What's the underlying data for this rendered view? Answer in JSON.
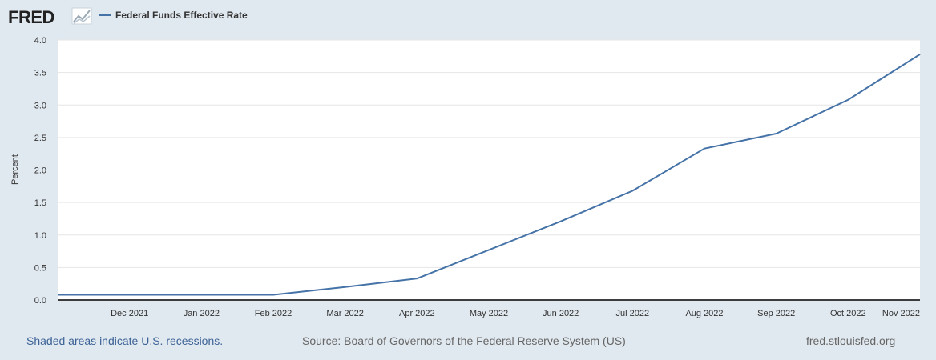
{
  "logo": {
    "text": "FRED"
  },
  "legend": {
    "label": "Federal Funds Effective Rate"
  },
  "colors": {
    "series": "#4572a7",
    "background": "#e1e9f0",
    "plot": "#ffffff",
    "grid": "#e6e6e6"
  },
  "footer": {
    "left": "Shaded areas indicate U.S. recessions.",
    "center": "Source: Board of Governors of the Federal Reserve System (US)",
    "right": "fred.stlouisfed.org"
  },
  "chart_data": {
    "type": "line",
    "title": "",
    "xlabel": "",
    "ylabel": "Percent",
    "ylim": [
      0,
      4.0
    ],
    "yticks": [
      "0.0",
      "0.5",
      "1.0",
      "1.5",
      "2.0",
      "2.5",
      "3.0",
      "3.5",
      "4.0"
    ],
    "xlim": [
      0,
      12
    ],
    "xticks": [
      {
        "label": "Dec 2021",
        "x": 1
      },
      {
        "label": "Jan 2022",
        "x": 2
      },
      {
        "label": "Feb 2022",
        "x": 3
      },
      {
        "label": "Mar 2022",
        "x": 4
      },
      {
        "label": "Apr 2022",
        "x": 5
      },
      {
        "label": "May 2022",
        "x": 6
      },
      {
        "label": "Jun 2022",
        "x": 7
      },
      {
        "label": "Jul 2022",
        "x": 8
      },
      {
        "label": "Aug 2022",
        "x": 9
      },
      {
        "label": "Sep 2022",
        "x": 10
      },
      {
        "label": "Oct 2022",
        "x": 11
      },
      {
        "label": "Nov 2022",
        "x": 12
      }
    ],
    "series": [
      {
        "name": "Federal Funds Effective Rate",
        "x": [
          0,
          1,
          2,
          3,
          4,
          5,
          6,
          7,
          8,
          9,
          10,
          11,
          12
        ],
        "values": [
          0.08,
          0.08,
          0.08,
          0.08,
          0.2,
          0.33,
          0.77,
          1.21,
          1.68,
          2.33,
          2.56,
          3.08,
          3.78
        ]
      }
    ]
  }
}
